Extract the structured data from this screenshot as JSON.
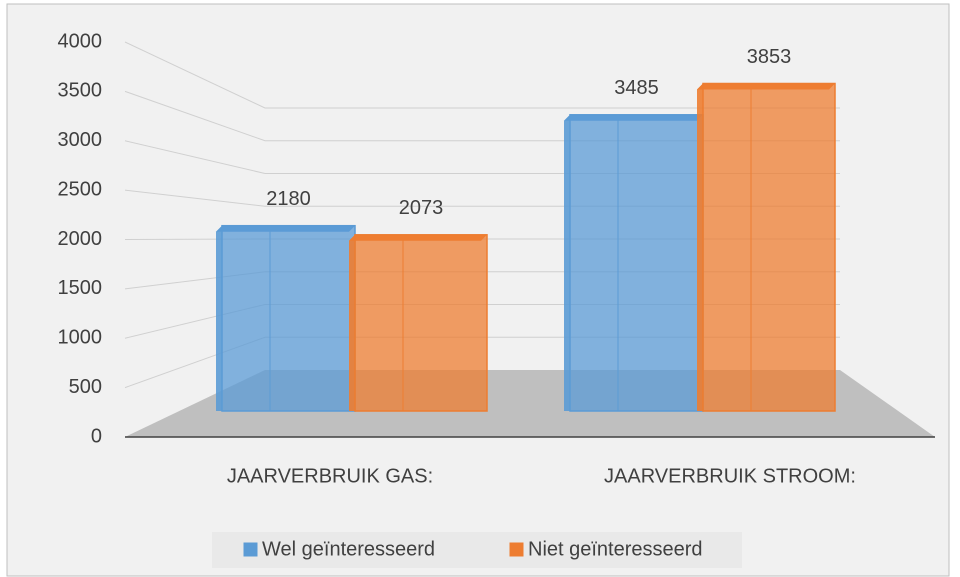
{
  "chart_data": {
    "type": "bar3d",
    "categories": [
      "JAARVERBRUIK GAS:",
      "JAARVERBRUIK STROOM:"
    ],
    "series": [
      {
        "name": "Wel geïnteresseerd",
        "color": "#5b9bd5",
        "values": [
          2180,
          3485
        ]
      },
      {
        "name": "Niet geïnteresseerd",
        "color": "#ed7d31",
        "values": [
          2073,
          3853
        ]
      }
    ],
    "ylim": [
      0,
      4000
    ],
    "yticks": [
      0,
      500,
      1000,
      1500,
      2000,
      2500,
      3000,
      3500,
      4000
    ],
    "grid": true,
    "legend": "bottom"
  }
}
